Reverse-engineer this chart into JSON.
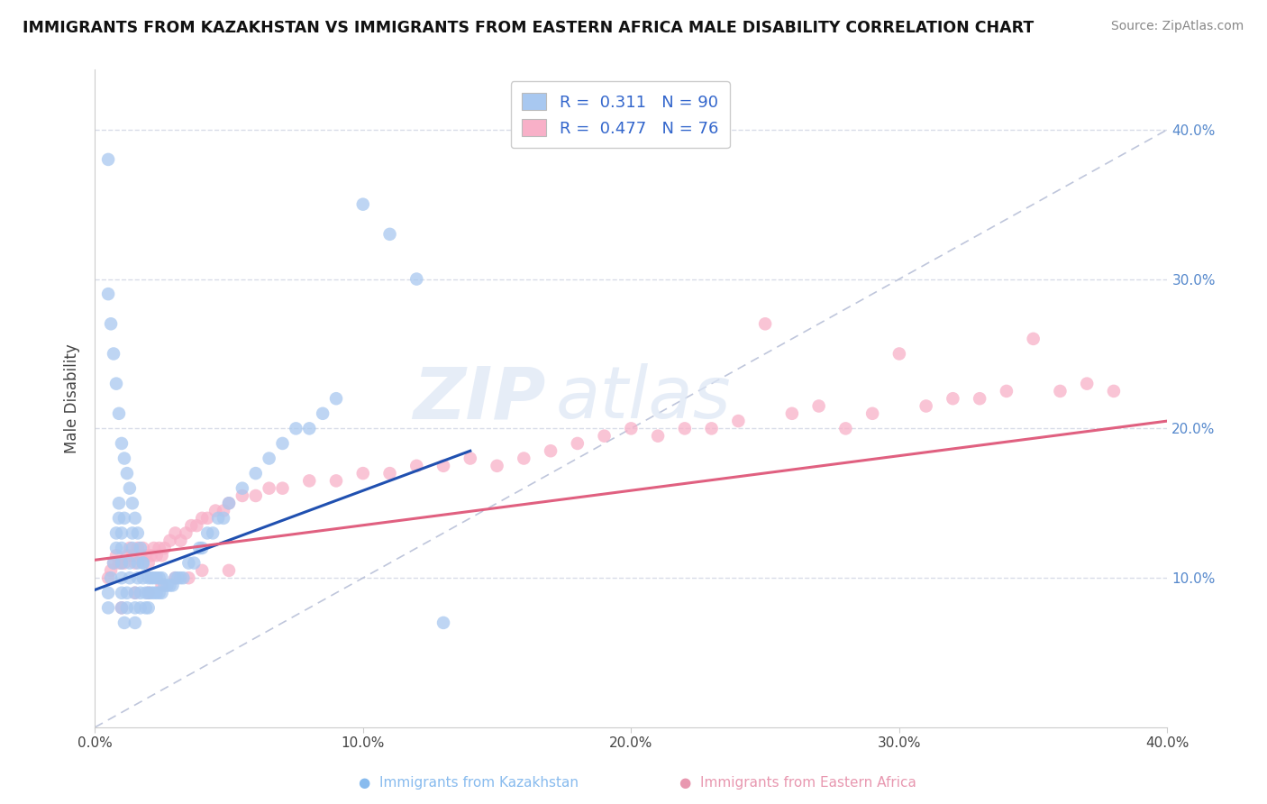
{
  "title": "IMMIGRANTS FROM KAZAKHSTAN VS IMMIGRANTS FROM EASTERN AFRICA MALE DISABILITY CORRELATION CHART",
  "source": "Source: ZipAtlas.com",
  "ylabel": "Male Disability",
  "xlim": [
    0.0,
    0.4
  ],
  "ylim": [
    0.0,
    0.44
  ],
  "xtick_vals": [
    0.0,
    0.1,
    0.2,
    0.3,
    0.4
  ],
  "ytick_vals": [
    0.1,
    0.2,
    0.3,
    0.4
  ],
  "blue_R": 0.311,
  "blue_N": 90,
  "pink_R": 0.477,
  "pink_N": 76,
  "blue_color": "#a8c8f0",
  "blue_line_color": "#2050b0",
  "pink_color": "#f8b0c8",
  "pink_line_color": "#e06080",
  "diagonal_color": "#b8c0d8",
  "watermark_ZIP": "ZIP",
  "watermark_atlas": "atlas",
  "background_color": "#ffffff",
  "grid_color": "#d8dce8",
  "legend_label_blue": "Immigrants from Kazakhstan",
  "legend_label_pink": "Immigrants from Eastern Africa",
  "blue_scatter_x": [
    0.005,
    0.005,
    0.006,
    0.007,
    0.008,
    0.008,
    0.009,
    0.009,
    0.01,
    0.01,
    0.01,
    0.01,
    0.01,
    0.01,
    0.011,
    0.011,
    0.012,
    0.012,
    0.013,
    0.013,
    0.014,
    0.014,
    0.015,
    0.015,
    0.015,
    0.016,
    0.016,
    0.017,
    0.017,
    0.018,
    0.018,
    0.019,
    0.019,
    0.02,
    0.02,
    0.02,
    0.021,
    0.021,
    0.022,
    0.022,
    0.023,
    0.023,
    0.024,
    0.024,
    0.025,
    0.025,
    0.026,
    0.027,
    0.028,
    0.029,
    0.03,
    0.031,
    0.032,
    0.033,
    0.035,
    0.037,
    0.039,
    0.04,
    0.042,
    0.044,
    0.046,
    0.048,
    0.05,
    0.055,
    0.06,
    0.065,
    0.07,
    0.075,
    0.08,
    0.085,
    0.09,
    0.1,
    0.11,
    0.12,
    0.13,
    0.005,
    0.005,
    0.006,
    0.007,
    0.008,
    0.009,
    0.01,
    0.011,
    0.012,
    0.013,
    0.014,
    0.015,
    0.016,
    0.017,
    0.018
  ],
  "blue_scatter_y": [
    0.08,
    0.09,
    0.1,
    0.11,
    0.12,
    0.13,
    0.14,
    0.15,
    0.08,
    0.09,
    0.1,
    0.11,
    0.12,
    0.13,
    0.14,
    0.07,
    0.08,
    0.09,
    0.1,
    0.11,
    0.12,
    0.13,
    0.07,
    0.08,
    0.09,
    0.1,
    0.11,
    0.08,
    0.09,
    0.1,
    0.11,
    0.08,
    0.09,
    0.08,
    0.09,
    0.1,
    0.09,
    0.1,
    0.09,
    0.1,
    0.09,
    0.1,
    0.09,
    0.1,
    0.09,
    0.1,
    0.095,
    0.095,
    0.095,
    0.095,
    0.1,
    0.1,
    0.1,
    0.1,
    0.11,
    0.11,
    0.12,
    0.12,
    0.13,
    0.13,
    0.14,
    0.14,
    0.15,
    0.16,
    0.17,
    0.18,
    0.19,
    0.2,
    0.2,
    0.21,
    0.22,
    0.35,
    0.33,
    0.3,
    0.07,
    0.38,
    0.29,
    0.27,
    0.25,
    0.23,
    0.21,
    0.19,
    0.18,
    0.17,
    0.16,
    0.15,
    0.14,
    0.13,
    0.12,
    0.11
  ],
  "pink_scatter_x": [
    0.005,
    0.006,
    0.007,
    0.008,
    0.009,
    0.01,
    0.011,
    0.012,
    0.013,
    0.014,
    0.015,
    0.016,
    0.017,
    0.018,
    0.019,
    0.02,
    0.021,
    0.022,
    0.023,
    0.024,
    0.025,
    0.026,
    0.028,
    0.03,
    0.032,
    0.034,
    0.036,
    0.038,
    0.04,
    0.042,
    0.045,
    0.048,
    0.05,
    0.055,
    0.06,
    0.065,
    0.07,
    0.08,
    0.09,
    0.1,
    0.11,
    0.12,
    0.13,
    0.14,
    0.15,
    0.16,
    0.17,
    0.18,
    0.19,
    0.2,
    0.21,
    0.22,
    0.23,
    0.24,
    0.25,
    0.26,
    0.27,
    0.28,
    0.29,
    0.3,
    0.31,
    0.32,
    0.33,
    0.34,
    0.35,
    0.36,
    0.37,
    0.38,
    0.01,
    0.015,
    0.02,
    0.025,
    0.03,
    0.035,
    0.04,
    0.05
  ],
  "pink_scatter_y": [
    0.1,
    0.105,
    0.11,
    0.115,
    0.11,
    0.11,
    0.11,
    0.115,
    0.12,
    0.115,
    0.11,
    0.12,
    0.115,
    0.12,
    0.115,
    0.11,
    0.115,
    0.12,
    0.115,
    0.12,
    0.115,
    0.12,
    0.125,
    0.13,
    0.125,
    0.13,
    0.135,
    0.135,
    0.14,
    0.14,
    0.145,
    0.145,
    0.15,
    0.155,
    0.155,
    0.16,
    0.16,
    0.165,
    0.165,
    0.17,
    0.17,
    0.175,
    0.175,
    0.18,
    0.175,
    0.18,
    0.185,
    0.19,
    0.195,
    0.2,
    0.195,
    0.2,
    0.2,
    0.205,
    0.27,
    0.21,
    0.215,
    0.2,
    0.21,
    0.25,
    0.215,
    0.22,
    0.22,
    0.225,
    0.26,
    0.225,
    0.23,
    0.225,
    0.08,
    0.09,
    0.09,
    0.095,
    0.1,
    0.1,
    0.105,
    0.105
  ],
  "blue_line_x0": 0.0,
  "blue_line_x1": 0.14,
  "blue_line_y0": 0.092,
  "blue_line_y1": 0.185,
  "pink_line_x0": 0.0,
  "pink_line_x1": 0.4,
  "pink_line_y0": 0.112,
  "pink_line_y1": 0.205
}
